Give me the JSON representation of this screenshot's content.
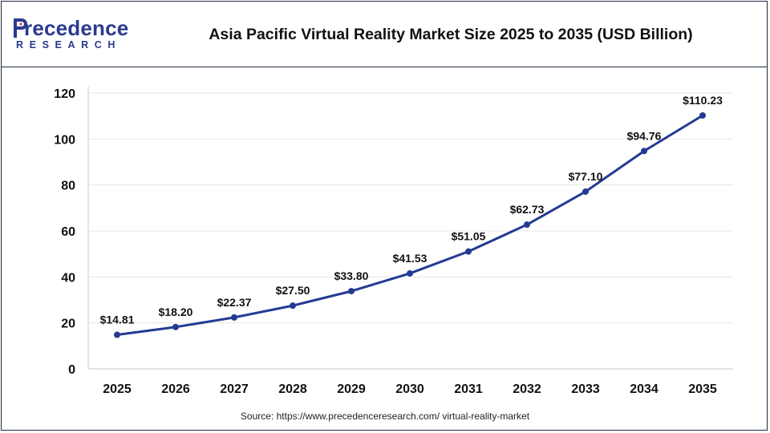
{
  "brand": {
    "name": "recedence",
    "sub": "RESEARCH",
    "color": "#2b3a8f"
  },
  "header": {
    "title": "Asia Pacific Virtual Reality Market Size 2025 to 2035 (USD Billion)"
  },
  "footer": {
    "source": "Source: https://www.precedenceresearch.com/ virtual-reality-market"
  },
  "chart_data": {
    "type": "line",
    "title": "Asia Pacific Virtual Reality Market Size 2025 to 2035 (USD Billion)",
    "xlabel": "",
    "ylabel": "",
    "categories": [
      "2025",
      "2026",
      "2027",
      "2028",
      "2029",
      "2030",
      "2031",
      "2032",
      "2033",
      "2034",
      "2035"
    ],
    "series": [
      {
        "values": [
          14.81,
          18.2,
          22.37,
          27.5,
          33.8,
          41.53,
          51.05,
          62.73,
          77.1,
          94.76,
          110.23
        ],
        "labels": [
          "$14.81",
          "$18.20",
          "$22.37",
          "$27.50",
          "$33.80",
          "$41.53",
          "$51.05",
          "$62.73",
          "$77.10",
          "$94.76",
          "$110.23"
        ],
        "color": "#233a93"
      }
    ],
    "ylim": [
      0,
      120
    ],
    "yticks": [
      0,
      20,
      40,
      60,
      80,
      100,
      120
    ],
    "grid": true,
    "legend": "none"
  }
}
